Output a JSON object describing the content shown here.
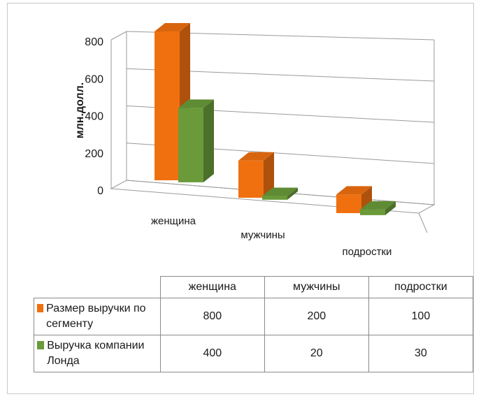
{
  "chart_data": {
    "type": "bar",
    "categories": [
      "женщина",
      "мужчины",
      "подростки"
    ],
    "series": [
      {
        "name": "Размер выручки по сегменту",
        "values": [
          800,
          200,
          100
        ],
        "color": "#f07010"
      },
      {
        "name": "Выручка компании Лонда",
        "values": [
          400,
          20,
          30
        ],
        "color": "#6a9a3a"
      }
    ],
    "ylabel": "млн.долл.",
    "ylim": [
      0,
      800
    ],
    "yticks": [
      "0",
      "200",
      "400",
      "600",
      "800"
    ],
    "grid": true,
    "three_d": true,
    "legend": "data-table"
  }
}
